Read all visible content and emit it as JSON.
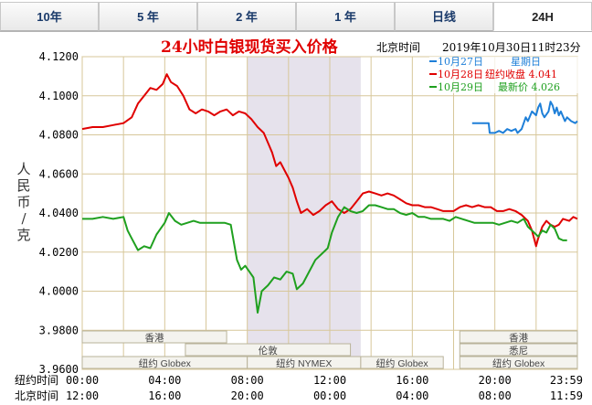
{
  "tabs": [
    {
      "label": "10年",
      "active": false
    },
    {
      "label": "5 年",
      "active": false
    },
    {
      "label": "2 年",
      "active": false
    },
    {
      "label": "1 年",
      "active": false
    },
    {
      "label": "日线",
      "active": false
    },
    {
      "label": "24H",
      "active": true
    }
  ],
  "legend": [
    {
      "date": "10月27日",
      "label": "星期日",
      "color": "#1e7fd8"
    },
    {
      "date": "10月28日",
      "label": "纽约收盘 4.041",
      "color": "#e00000"
    },
    {
      "date": "10月29日",
      "label": "最新价 4.026",
      "color": "#1fa01f"
    }
  ],
  "header": {
    "datetime_label": "北京时间",
    "datetime": "2019年10月30日11时23分"
  },
  "sessions": [
    {
      "name": "香港"
    },
    {
      "name": "伦敦"
    },
    {
      "name": "纽约 Globex"
    },
    {
      "name": "纽约 NYMEX"
    },
    {
      "name": "纽约 Globex"
    },
    {
      "name": "香港"
    },
    {
      "name": "悉尼"
    },
    {
      "name": "纽约 Globex"
    }
  ],
  "time_axis": {
    "ny_label": "纽约时间",
    "bj_label": "北京时间",
    "ny": [
      "00:00",
      "04:00",
      "08:00",
      "12:00",
      "16:00",
      "20:00",
      "23:59"
    ],
    "bj": [
      "12:00",
      "16:00",
      "20:00",
      "00:00",
      "04:00",
      "08:00",
      "11:59"
    ]
  },
  "chart_data": {
    "type": "line",
    "title": "24小时白银现货买入价格",
    "ylabel": "人民币/克",
    "ylim": [
      3.96,
      4.12
    ],
    "yticks": [
      "4.1200",
      "4.1000",
      "4.0800",
      "4.0600",
      "4.0400",
      "4.0200",
      "4.0000",
      "3.9800",
      "3.9600"
    ],
    "xlim": [
      0,
      24
    ],
    "nymex_shade": [
      8.0,
      13.5
    ],
    "series": [
      {
        "name": "10月27日",
        "color": "#1e7fd8",
        "points": [
          [
            18.9,
            4.086
          ],
          [
            19.2,
            4.086
          ],
          [
            19.5,
            4.086
          ],
          [
            19.7,
            4.086
          ],
          [
            19.75,
            4.081
          ],
          [
            20.0,
            4.081
          ],
          [
            20.2,
            4.082
          ],
          [
            20.4,
            4.081
          ],
          [
            20.6,
            4.083
          ],
          [
            20.8,
            4.082
          ],
          [
            21.0,
            4.083
          ],
          [
            21.1,
            4.081
          ],
          [
            21.3,
            4.083
          ],
          [
            21.5,
            4.089
          ],
          [
            21.6,
            4.087
          ],
          [
            21.8,
            4.092
          ],
          [
            22.0,
            4.09
          ],
          [
            22.1,
            4.094
          ],
          [
            22.2,
            4.096
          ],
          [
            22.3,
            4.091
          ],
          [
            22.4,
            4.089
          ],
          [
            22.6,
            4.092
          ],
          [
            22.7,
            4.097
          ],
          [
            22.8,
            4.095
          ],
          [
            22.9,
            4.091
          ],
          [
            23.0,
            4.094
          ],
          [
            23.1,
            4.09
          ],
          [
            23.2,
            4.092
          ],
          [
            23.4,
            4.087
          ],
          [
            23.5,
            4.089
          ],
          [
            23.7,
            4.087
          ],
          [
            23.9,
            4.086
          ],
          [
            24.0,
            4.087
          ]
        ]
      },
      {
        "name": "10月28日",
        "color": "#e00000",
        "points": [
          [
            0,
            4.083
          ],
          [
            0.5,
            4.084
          ],
          [
            1.0,
            4.084
          ],
          [
            1.5,
            4.085
          ],
          [
            2.0,
            4.086
          ],
          [
            2.4,
            4.089
          ],
          [
            2.7,
            4.096
          ],
          [
            3.0,
            4.1
          ],
          [
            3.3,
            4.104
          ],
          [
            3.6,
            4.103
          ],
          [
            3.9,
            4.106
          ],
          [
            4.1,
            4.111
          ],
          [
            4.3,
            4.107
          ],
          [
            4.6,
            4.105
          ],
          [
            4.9,
            4.1
          ],
          [
            5.2,
            4.093
          ],
          [
            5.5,
            4.091
          ],
          [
            5.8,
            4.093
          ],
          [
            6.1,
            4.092
          ],
          [
            6.4,
            4.09
          ],
          [
            6.7,
            4.092
          ],
          [
            7.0,
            4.093
          ],
          [
            7.3,
            4.09
          ],
          [
            7.6,
            4.092
          ],
          [
            7.9,
            4.091
          ],
          [
            8.2,
            4.088
          ],
          [
            8.5,
            4.084
          ],
          [
            8.8,
            4.081
          ],
          [
            9.0,
            4.076
          ],
          [
            9.2,
            4.071
          ],
          [
            9.4,
            4.064
          ],
          [
            9.6,
            4.066
          ],
          [
            9.8,
            4.062
          ],
          [
            10.0,
            4.058
          ],
          [
            10.2,
            4.053
          ],
          [
            10.4,
            4.046
          ],
          [
            10.6,
            4.04
          ],
          [
            10.9,
            4.042
          ],
          [
            11.2,
            4.039
          ],
          [
            11.5,
            4.041
          ],
          [
            11.8,
            4.044
          ],
          [
            12.1,
            4.046
          ],
          [
            12.4,
            4.042
          ],
          [
            12.7,
            4.04
          ],
          [
            13.0,
            4.042
          ],
          [
            13.3,
            4.046
          ],
          [
            13.6,
            4.05
          ],
          [
            13.9,
            4.051
          ],
          [
            14.2,
            4.05
          ],
          [
            14.5,
            4.049
          ],
          [
            14.8,
            4.05
          ],
          [
            15.1,
            4.049
          ],
          [
            15.4,
            4.047
          ],
          [
            15.7,
            4.045
          ],
          [
            16.0,
            4.044
          ],
          [
            16.3,
            4.044
          ],
          [
            16.6,
            4.043
          ],
          [
            16.9,
            4.043
          ],
          [
            17.2,
            4.042
          ],
          [
            17.5,
            4.041
          ],
          [
            17.8,
            4.041
          ],
          [
            18.0,
            4.041
          ],
          [
            18.3,
            4.043
          ],
          [
            18.6,
            4.044
          ],
          [
            18.9,
            4.043
          ],
          [
            19.2,
            4.044
          ],
          [
            19.5,
            4.043
          ],
          [
            19.8,
            4.043
          ],
          [
            20.1,
            4.041
          ],
          [
            20.4,
            4.041
          ],
          [
            20.7,
            4.042
          ],
          [
            21.0,
            4.041
          ],
          [
            21.3,
            4.039
          ],
          [
            21.6,
            4.036
          ],
          [
            21.8,
            4.031
          ],
          [
            22.0,
            4.023
          ],
          [
            22.1,
            4.027
          ],
          [
            22.3,
            4.033
          ],
          [
            22.5,
            4.036
          ],
          [
            22.7,
            4.034
          ],
          [
            22.9,
            4.033
          ],
          [
            23.1,
            4.034
          ],
          [
            23.3,
            4.037
          ],
          [
            23.6,
            4.036
          ],
          [
            23.8,
            4.038
          ],
          [
            24.0,
            4.037
          ]
        ]
      },
      {
        "name": "10月29日",
        "color": "#1fa01f",
        "points": [
          [
            0,
            4.037
          ],
          [
            0.5,
            4.037
          ],
          [
            1.0,
            4.038
          ],
          [
            1.5,
            4.037
          ],
          [
            2.0,
            4.038
          ],
          [
            2.2,
            4.031
          ],
          [
            2.4,
            4.027
          ],
          [
            2.7,
            4.021
          ],
          [
            3.0,
            4.023
          ],
          [
            3.3,
            4.022
          ],
          [
            3.6,
            4.029
          ],
          [
            4.0,
            4.035
          ],
          [
            4.2,
            4.04
          ],
          [
            4.5,
            4.036
          ],
          [
            4.8,
            4.034
          ],
          [
            5.1,
            4.035
          ],
          [
            5.4,
            4.036
          ],
          [
            5.7,
            4.035
          ],
          [
            6.0,
            4.035
          ],
          [
            6.3,
            4.035
          ],
          [
            6.6,
            4.035
          ],
          [
            6.9,
            4.035
          ],
          [
            7.2,
            4.034
          ],
          [
            7.5,
            4.016
          ],
          [
            7.7,
            4.011
          ],
          [
            7.9,
            4.013
          ],
          [
            8.1,
            4.01
          ],
          [
            8.3,
            4.007
          ],
          [
            8.5,
            3.989
          ],
          [
            8.7,
            4.0
          ],
          [
            9.0,
            4.003
          ],
          [
            9.3,
            4.007
          ],
          [
            9.6,
            4.006
          ],
          [
            9.9,
            4.01
          ],
          [
            10.2,
            4.009
          ],
          [
            10.4,
            4.001
          ],
          [
            10.7,
            4.004
          ],
          [
            11.0,
            4.01
          ],
          [
            11.3,
            4.016
          ],
          [
            11.6,
            4.019
          ],
          [
            11.9,
            4.022
          ],
          [
            12.1,
            4.03
          ],
          [
            12.4,
            4.038
          ],
          [
            12.7,
            4.043
          ],
          [
            13.0,
            4.041
          ],
          [
            13.3,
            4.04
          ],
          [
            13.6,
            4.041
          ],
          [
            13.9,
            4.044
          ],
          [
            14.2,
            4.044
          ],
          [
            14.5,
            4.043
          ],
          [
            14.8,
            4.042
          ],
          [
            15.1,
            4.042
          ],
          [
            15.4,
            4.04
          ],
          [
            15.7,
            4.039
          ],
          [
            16.0,
            4.04
          ],
          [
            16.3,
            4.038
          ],
          [
            16.6,
            4.038
          ],
          [
            16.9,
            4.037
          ],
          [
            17.2,
            4.037
          ],
          [
            17.5,
            4.037
          ],
          [
            17.8,
            4.036
          ],
          [
            18.1,
            4.038
          ],
          [
            18.4,
            4.037
          ],
          [
            18.7,
            4.036
          ],
          [
            19.0,
            4.035
          ],
          [
            19.3,
            4.035
          ],
          [
            19.6,
            4.035
          ],
          [
            19.9,
            4.035
          ],
          [
            20.2,
            4.034
          ],
          [
            20.5,
            4.035
          ],
          [
            20.8,
            4.036
          ],
          [
            21.1,
            4.035
          ],
          [
            21.4,
            4.037
          ],
          [
            21.6,
            4.033
          ],
          [
            21.9,
            4.03
          ],
          [
            22.1,
            4.028
          ],
          [
            22.3,
            4.031
          ],
          [
            22.5,
            4.03
          ],
          [
            22.7,
            4.034
          ],
          [
            22.9,
            4.032
          ],
          [
            23.1,
            4.027
          ],
          [
            23.3,
            4.026
          ],
          [
            23.5,
            4.026
          ]
        ]
      }
    ]
  }
}
